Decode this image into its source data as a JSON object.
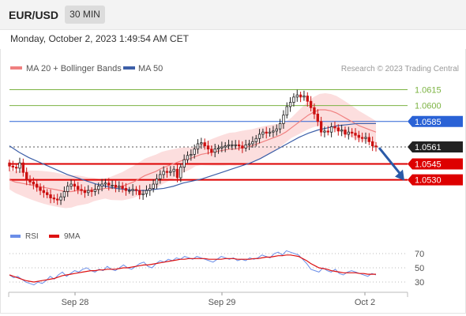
{
  "header": {
    "symbol": "EUR/USD",
    "timeframe": "30 MIN",
    "datetime": "Monday, October 2, 2023 1:49:54 AM CET"
  },
  "legend": {
    "ma20_label": "MA 20 + Bollinger Bands",
    "ma50_label": "MA 50",
    "credit": "Research © 2023 Trading Central"
  },
  "colors": {
    "candle_up": "#222222",
    "candle_down": "#cc1111",
    "bollinger_fill": "#fbd6d6",
    "ma20": "#f08080",
    "ma50": "#3d5fa8",
    "resistance": "#7cb342",
    "pivot": "#2a62d6",
    "support": "#dd0000",
    "price_tag": "#222222",
    "arrow": "#2a5aa8",
    "rsi": "#6b8ee8",
    "rsi_ma": "#dd1111"
  },
  "chart_data": [
    {
      "type": "candlestick",
      "title": "",
      "ylim": [
        1.05,
        1.0625
      ],
      "x_ticks": [
        "Sep 28",
        "Sep 29",
        "Oct 2"
      ],
      "levels": [
        {
          "name": "resistance",
          "value": 1.0615,
          "label": "1.0615"
        },
        {
          "name": "resistance",
          "value": 1.06,
          "label": "1.0600"
        },
        {
          "name": "pivot",
          "value": 1.0585,
          "label": "1.0585"
        },
        {
          "name": "last_price",
          "value": 1.0561,
          "label": "1.0561"
        },
        {
          "name": "support",
          "value": 1.0545,
          "label": "1.0545"
        },
        {
          "name": "support",
          "value": 1.053,
          "label": "1.0530"
        }
      ],
      "close": [
        1.0543,
        1.0542,
        1.0541,
        1.0546,
        1.0537,
        1.053,
        1.0528,
        1.0526,
        1.0523,
        1.052,
        1.0518,
        1.0516,
        1.0513,
        1.0512,
        1.0511,
        1.0514,
        1.0519,
        1.0524,
        1.0526,
        1.0524,
        1.0521,
        1.052,
        1.0518,
        1.052,
        1.0519,
        1.0521,
        1.0524,
        1.0526,
        1.0527,
        1.0525,
        1.0525,
        1.0523,
        1.0524,
        1.0522,
        1.052,
        1.052,
        1.0521,
        1.052,
        1.0516,
        1.0517,
        1.052,
        1.0522,
        1.0526,
        1.0531,
        1.0535,
        1.0538,
        1.0537,
        1.0538,
        1.054,
        1.0532,
        1.0542,
        1.0549,
        1.0553,
        1.0554,
        1.0559,
        1.0564,
        1.0565,
        1.0562,
        1.0559,
        1.0556,
        1.0559,
        1.056,
        1.0561,
        1.0562,
        1.0563,
        1.0563,
        1.0563,
        1.0562,
        1.056,
        1.0563,
        1.0564,
        1.0566,
        1.0569,
        1.0573,
        1.0575,
        1.0574,
        1.0575,
        1.0576,
        1.0578,
        1.0583,
        1.0591,
        1.0599,
        1.0603,
        1.0608,
        1.061,
        1.0608,
        1.0609,
        1.0604,
        1.0598,
        1.0592,
        1.0585,
        1.0575,
        1.0576,
        1.0575,
        1.058,
        1.0579,
        1.0576,
        1.0577,
        1.0573,
        1.0575,
        1.0574,
        1.0572,
        1.057,
        1.0569,
        1.057,
        1.0566,
        1.0562,
        1.0561
      ],
      "ma20": [
        1.053,
        1.0528,
        1.0527,
        1.0526,
        1.0525,
        1.0524,
        1.0523,
        1.0522,
        1.0521,
        1.052,
        1.0519,
        1.0519,
        1.052,
        1.052,
        1.052,
        1.0521,
        1.0521,
        1.0522,
        1.0522,
        1.0523,
        1.0524,
        1.0526,
        1.0528,
        1.0531,
        1.0534,
        1.0536,
        1.0538,
        1.0541,
        1.0543,
        1.0545,
        1.0547,
        1.0549,
        1.055,
        1.0552,
        1.0554,
        1.0555,
        1.0556,
        1.0557,
        1.0558,
        1.0559,
        1.0559,
        1.056,
        1.0561,
        1.0562,
        1.0564,
        1.0566,
        1.0568,
        1.057,
        1.0572,
        1.0575,
        1.0579,
        1.0583,
        1.0587,
        1.0591,
        1.0594,
        1.0596,
        1.0596,
        1.0595,
        1.0593,
        1.059,
        1.0587,
        1.0584,
        1.0581,
        1.0579,
        1.0577,
        1.0575
      ],
      "ma50": [
        1.0562,
        1.0556,
        1.0551,
        1.0547,
        1.0543,
        1.0539,
        1.0535,
        1.0532,
        1.0529,
        1.0526,
        1.0524,
        1.0522,
        1.0521,
        1.052,
        1.052,
        1.0521,
        1.0522,
        1.0524,
        1.0527,
        1.0529,
        1.0531,
        1.0534,
        1.0537,
        1.054,
        1.0543,
        1.0546,
        1.055,
        1.0555,
        1.056,
        1.0565,
        1.057,
        1.0574,
        1.0577,
        1.0579,
        1.0581,
        1.0582,
        1.0583,
        1.0583,
        1.0583
      ]
    },
    {
      "type": "line",
      "title": "",
      "legend": [
        "RSI",
        "9MA"
      ],
      "ylim": [
        20,
        80
      ],
      "y_ticks": [
        70,
        50,
        30
      ],
      "rsi": [
        40,
        36,
        38,
        34,
        30,
        28,
        26,
        30,
        28,
        32,
        38,
        34,
        40,
        44,
        38,
        42,
        46,
        44,
        48,
        50,
        46,
        44,
        48,
        46,
        52,
        48,
        46,
        50,
        54,
        50,
        48,
        52,
        56,
        58,
        52,
        50,
        56,
        60,
        58,
        62,
        60,
        64,
        62,
        66,
        64,
        62,
        66,
        64,
        62,
        60,
        58,
        62,
        66,
        64,
        62,
        64,
        60,
        62,
        60,
        64,
        62,
        64,
        68,
        66,
        64,
        70,
        72,
        68,
        74,
        72,
        70,
        68,
        62,
        56,
        48,
        46,
        44,
        50,
        46,
        44,
        48,
        42,
        40,
        44,
        46,
        44,
        42,
        40,
        38,
        42,
        40
      ],
      "rsi_ma": [
        40,
        38,
        36,
        34,
        32,
        31,
        30,
        31,
        32,
        33,
        34,
        35,
        37,
        39,
        40,
        41,
        42,
        43,
        44,
        45,
        46,
        46,
        47,
        47,
        48,
        48,
        48,
        49,
        50,
        50,
        51,
        52,
        53,
        54,
        54,
        55,
        56,
        57,
        58,
        59,
        60,
        61,
        62,
        62,
        63,
        63,
        63,
        63,
        63,
        62,
        62,
        62,
        62,
        63,
        63,
        63,
        62,
        62,
        62,
        62,
        63,
        63,
        64,
        65,
        65,
        66,
        67,
        67,
        68,
        68,
        67,
        66,
        63,
        60,
        56,
        53,
        50,
        49,
        48,
        46,
        45,
        44,
        43,
        43,
        43,
        43,
        42,
        42,
        41,
        41,
        41
      ]
    }
  ]
}
